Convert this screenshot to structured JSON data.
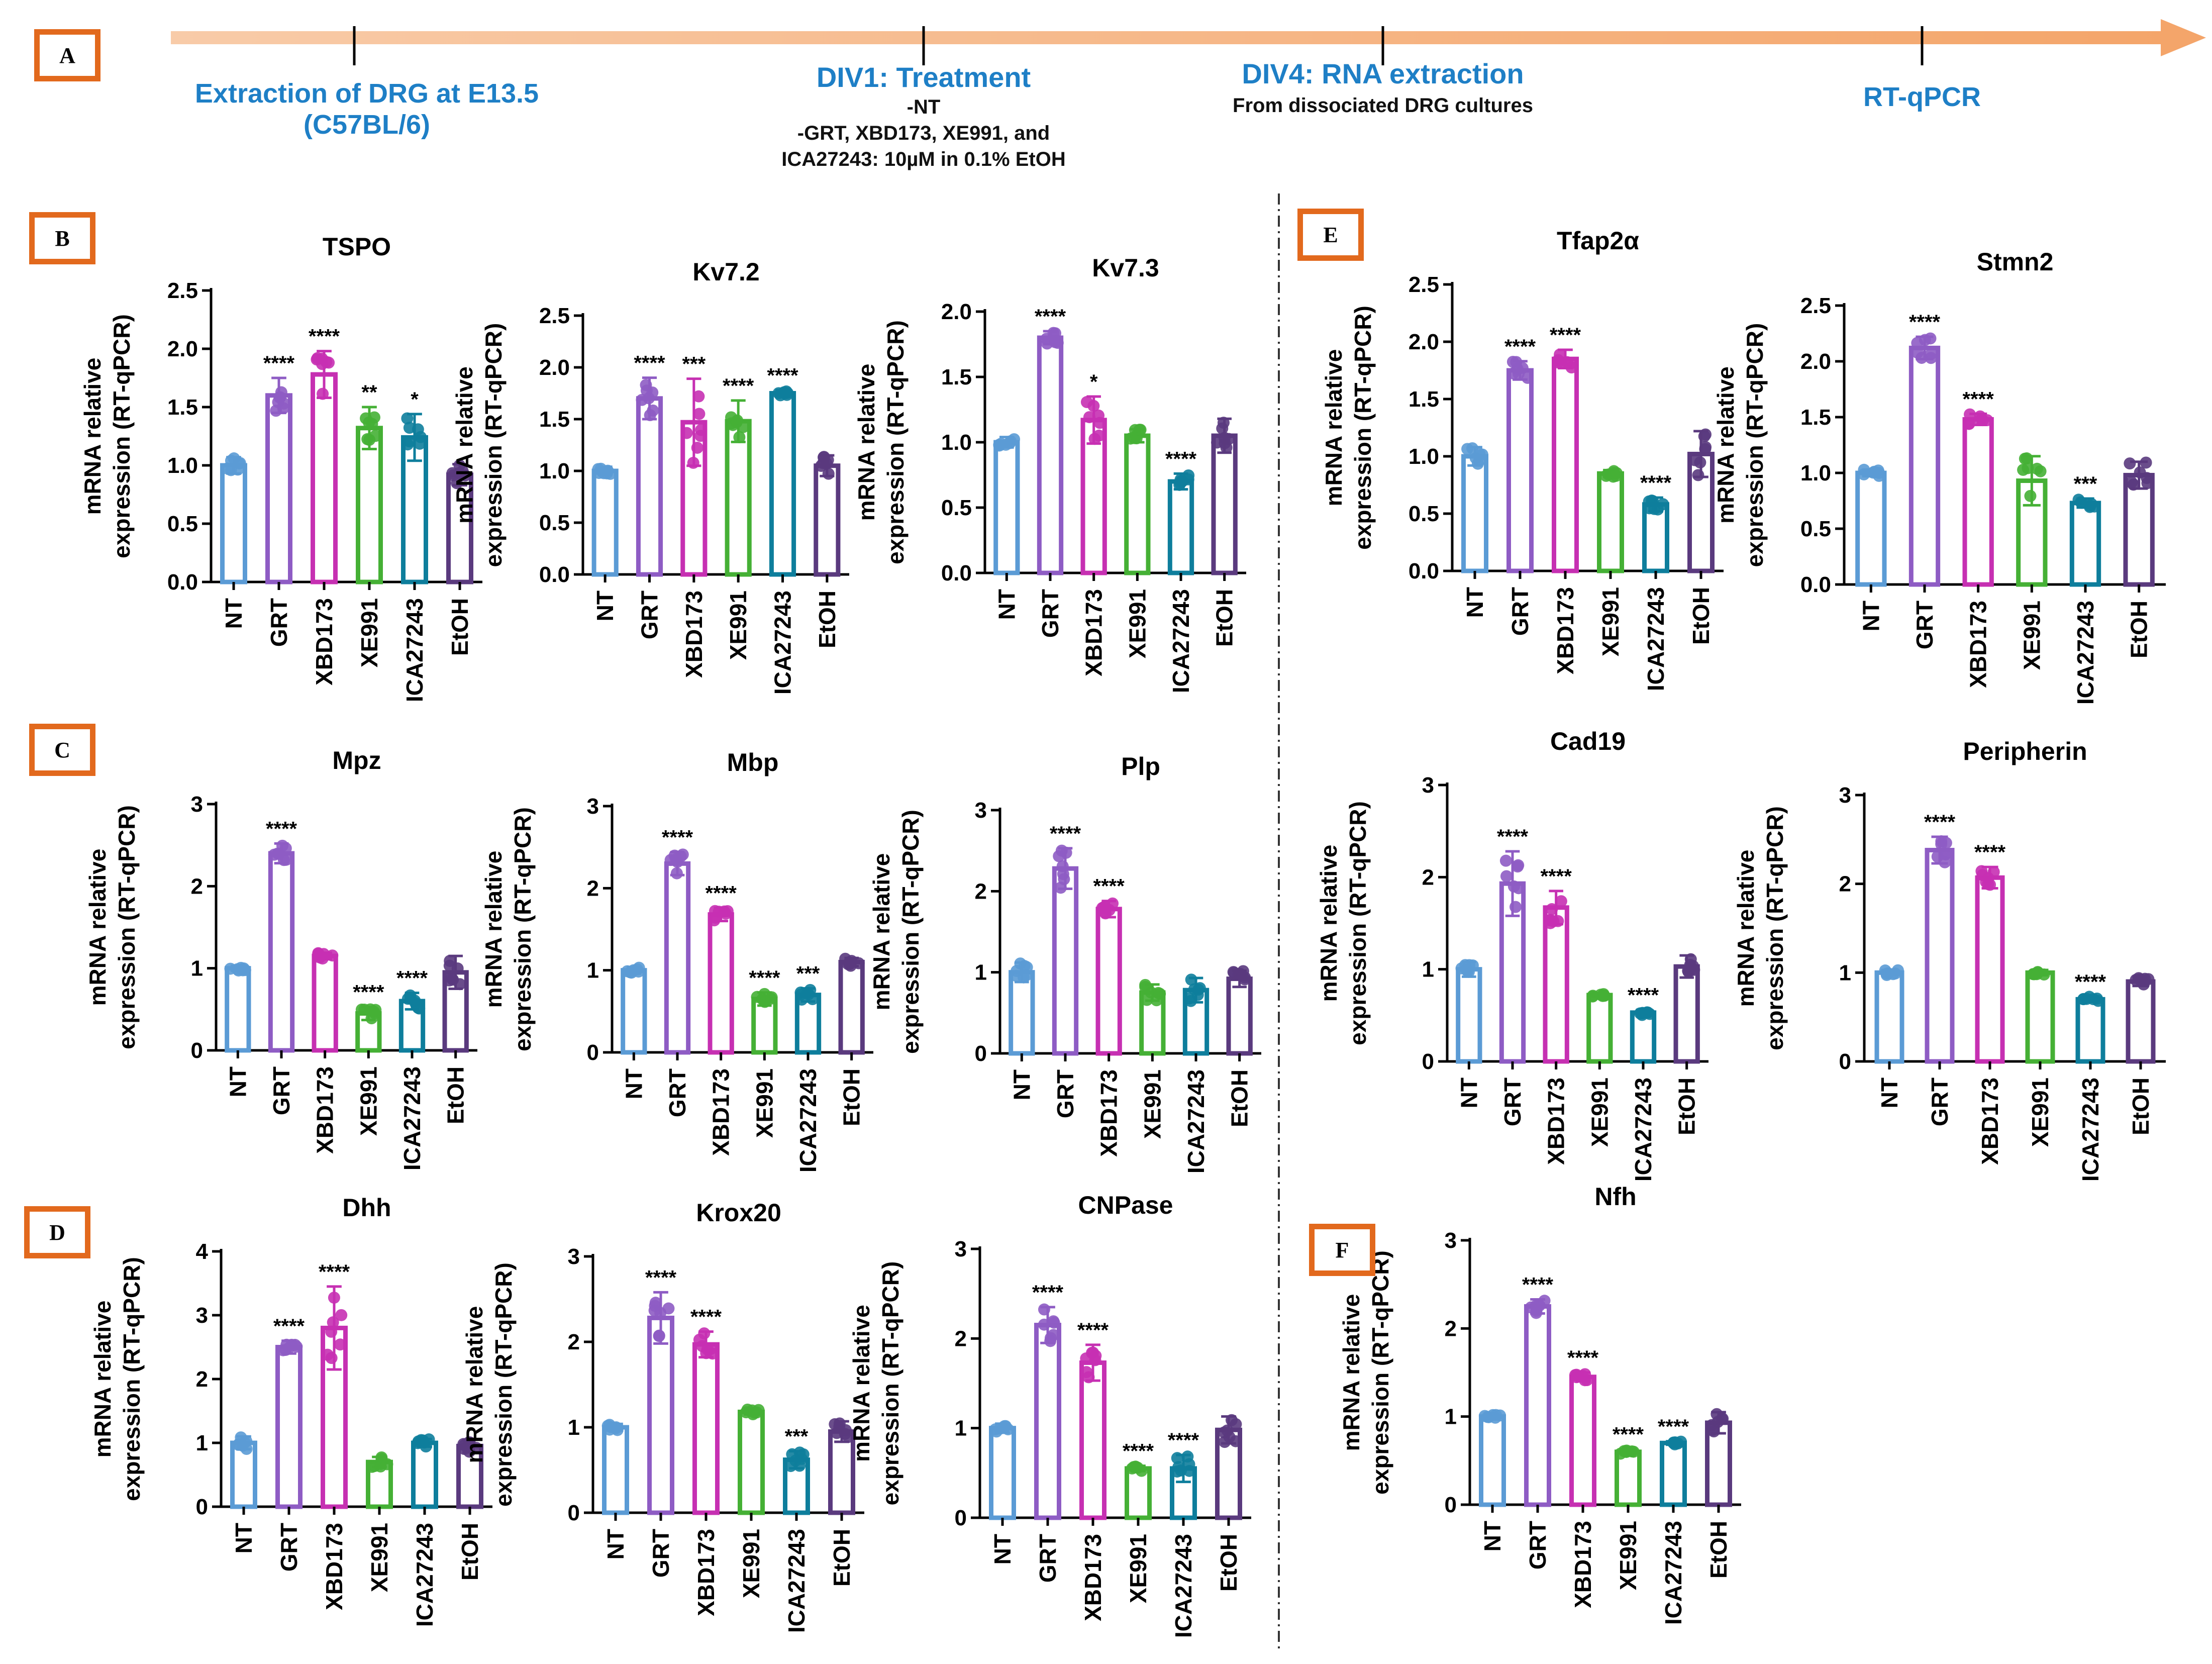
{
  "timeline": {
    "steps": [
      {
        "title": "Extraction of DRG at E13.5 (C57BL/6)",
        "details": []
      },
      {
        "title": "DIV1: Treatment",
        "details": [
          "-NT",
          "-GRT, XBD173, XE991, and",
          "ICA27243: 10µM in 0.1% EtOH"
        ]
      },
      {
        "title": "DIV4: RNA extraction",
        "details": [
          "From dissociated DRG cultures"
        ]
      },
      {
        "title": "RT-qPCR",
        "details": []
      }
    ]
  },
  "panels": {
    "A": "A",
    "B": "B",
    "C": "C",
    "D": "D",
    "E": "E",
    "F": "F"
  },
  "colors": {
    "NT": "#5b9bd5",
    "GRT": "#8e5cc4",
    "XBD173": "#c630b2",
    "XE991": "#45b035",
    "ICA27243": "#0e7e9c",
    "EtOH": "#5a3a7e",
    "arrow": "#f4b183",
    "panel_border": "#e2691d",
    "step_title": "#1e7fc6"
  },
  "y_axis_label_line1": "mRNA relative",
  "y_axis_label_line2": "expression (RT-qPCR)",
  "chart_data": [
    {
      "type": "bar",
      "title": "TSPO",
      "categories": [
        "NT",
        "GRT",
        "XBD173",
        "XE991",
        "ICA27243",
        "EtOH"
      ],
      "values": [
        1.0,
        1.6,
        1.78,
        1.32,
        1.24,
        0.92
      ],
      "errors": [
        0.07,
        0.15,
        0.2,
        0.18,
        0.2,
        0.09
      ],
      "significance": [
        "",
        "****",
        "****",
        "**",
        "*",
        ""
      ],
      "ylim": [
        0,
        2.5
      ],
      "yticks": [
        0.0,
        0.5,
        1.0,
        1.5,
        2.0,
        2.5
      ],
      "ylabel": "mRNA relative expression (RT-qPCR)"
    },
    {
      "type": "bar",
      "title": "Kv7.2",
      "categories": [
        "NT",
        "GRT",
        "XBD173",
        "XE991",
        "ICA27243",
        "EtOH"
      ],
      "values": [
        1.0,
        1.7,
        1.47,
        1.48,
        1.75,
        1.05
      ],
      "errors": [
        0.04,
        0.2,
        0.42,
        0.2,
        0.03,
        0.1
      ],
      "significance": [
        "",
        "****",
        "***",
        "****",
        "****",
        ""
      ],
      "ylim": [
        0,
        2.5
      ],
      "yticks": [
        0.0,
        0.5,
        1.0,
        1.5,
        2.0,
        2.5
      ],
      "ylabel": "mRNA relative expression (RT-qPCR)"
    },
    {
      "type": "bar",
      "title": "Kv7.3",
      "categories": [
        "NT",
        "GRT",
        "XBD173",
        "XE991",
        "ICA27243",
        "EtOH"
      ],
      "values": [
        1.0,
        1.8,
        1.17,
        1.05,
        0.7,
        1.05
      ],
      "errors": [
        0.04,
        0.05,
        0.18,
        0.05,
        0.06,
        0.13
      ],
      "significance": [
        "",
        "****",
        "*",
        "",
        "****",
        ""
      ],
      "ylim": [
        0,
        2.0
      ],
      "yticks": [
        0.0,
        0.5,
        1.0,
        1.5,
        2.0
      ],
      "ylabel": "mRNA relative expression (RT-qPCR)"
    },
    {
      "type": "bar",
      "title": "Tfap2α",
      "categories": [
        "NT",
        "GRT",
        "XBD173",
        "XE991",
        "ICA27243",
        "EtOH"
      ],
      "values": [
        1.0,
        1.75,
        1.85,
        0.85,
        0.58,
        1.02
      ],
      "errors": [
        0.08,
        0.08,
        0.08,
        0.03,
        0.06,
        0.2
      ],
      "significance": [
        "",
        "****",
        "****",
        "",
        "****",
        ""
      ],
      "ylim": [
        0,
        2.5
      ],
      "yticks": [
        0.0,
        0.5,
        1.0,
        1.5,
        2.0,
        2.5
      ],
      "ylabel": "mRNA relative expression (RT-qPCR)"
    },
    {
      "type": "bar",
      "title": "Stmn2",
      "categories": [
        "NT",
        "GRT",
        "XBD173",
        "XE991",
        "ICA27243",
        "EtOH"
      ],
      "values": [
        1.0,
        2.12,
        1.48,
        0.93,
        0.73,
        0.98
      ],
      "errors": [
        0.03,
        0.1,
        0.05,
        0.22,
        0.04,
        0.12
      ],
      "significance": [
        "",
        "****",
        "****",
        "",
        "***",
        ""
      ],
      "ylim": [
        0,
        2.5
      ],
      "yticks": [
        0.0,
        0.5,
        1.0,
        1.5,
        2.0,
        2.5
      ],
      "ylabel": "mRNA relative expression (RT-qPCR)"
    },
    {
      "type": "bar",
      "title": "Mpz",
      "categories": [
        "NT",
        "GRT",
        "XBD173",
        "XE991",
        "ICA27243",
        "EtOH"
      ],
      "values": [
        1.0,
        2.4,
        1.15,
        0.45,
        0.6,
        0.95
      ],
      "errors": [
        0.03,
        0.12,
        0.04,
        0.08,
        0.1,
        0.2
      ],
      "significance": [
        "",
        "****",
        "",
        "****",
        "****",
        ""
      ],
      "ylim": [
        0,
        3
      ],
      "yticks": [
        0,
        1,
        2,
        3
      ],
      "ylabel": "mRNA relative expression (RT-qPCR)"
    },
    {
      "type": "bar",
      "title": "Mbp",
      "categories": [
        "NT",
        "GRT",
        "XBD173",
        "XE991",
        "ICA27243",
        "EtOH"
      ],
      "values": [
        1.0,
        2.3,
        1.68,
        0.65,
        0.7,
        1.1
      ],
      "errors": [
        0.04,
        0.14,
        0.08,
        0.08,
        0.08,
        0.05
      ],
      "significance": [
        "",
        "****",
        "****",
        "****",
        "***",
        ""
      ],
      "ylim": [
        0,
        3
      ],
      "yticks": [
        0,
        1,
        2,
        3
      ],
      "ylabel": "mRNA relative expression (RT-qPCR)"
    },
    {
      "type": "bar",
      "title": "Plp",
      "categories": [
        "NT",
        "GRT",
        "XBD173",
        "XE991",
        "ICA27243",
        "EtOH"
      ],
      "values": [
        1.0,
        2.28,
        1.78,
        0.75,
        0.78,
        0.92
      ],
      "errors": [
        0.12,
        0.25,
        0.1,
        0.1,
        0.15,
        0.1
      ],
      "significance": [
        "",
        "****",
        "****",
        "",
        "",
        ""
      ],
      "ylim": [
        0,
        3
      ],
      "yticks": [
        0,
        1,
        2,
        3
      ],
      "ylabel": "mRNA relative expression (RT-qPCR)"
    },
    {
      "type": "bar",
      "title": "Cad19",
      "categories": [
        "NT",
        "GRT",
        "XBD173",
        "XE991",
        "ICA27243",
        "EtOH"
      ],
      "values": [
        1.0,
        1.93,
        1.67,
        0.72,
        0.53,
        1.03
      ],
      "errors": [
        0.08,
        0.35,
        0.18,
        0.02,
        0.03,
        0.12
      ],
      "significance": [
        "",
        "****",
        "****",
        "",
        "****",
        ""
      ],
      "ylim": [
        0,
        3
      ],
      "yticks": [
        0,
        1,
        2,
        3
      ],
      "ylabel": "mRNA relative expression (RT-qPCR)"
    },
    {
      "type": "bar",
      "title": "Peripherin",
      "categories": [
        "NT",
        "GRT",
        "XBD173",
        "XE991",
        "ICA27243",
        "EtOH"
      ],
      "values": [
        1.0,
        2.38,
        2.07,
        1.0,
        0.7,
        0.9
      ],
      "errors": [
        0.03,
        0.15,
        0.12,
        0.03,
        0.03,
        0.05
      ],
      "significance": [
        "",
        "****",
        "****",
        "",
        "****",
        ""
      ],
      "ylim": [
        0,
        3
      ],
      "yticks": [
        0,
        1,
        2,
        3
      ],
      "ylabel": "mRNA relative expression (RT-qPCR)"
    },
    {
      "type": "bar",
      "title": "Dhh",
      "categories": [
        "NT",
        "GRT",
        "XBD173",
        "XE991",
        "ICA27243",
        "EtOH"
      ],
      "values": [
        1.0,
        2.5,
        2.8,
        0.7,
        1.0,
        0.95
      ],
      "errors": [
        0.1,
        0.1,
        0.65,
        0.08,
        0.06,
        0.1
      ],
      "significance": [
        "",
        "****",
        "****",
        "",
        "",
        ""
      ],
      "ylim": [
        0,
        4
      ],
      "yticks": [
        0,
        1,
        2,
        3,
        4
      ],
      "ylabel": "mRNA relative expression (RT-qPCR)"
    },
    {
      "type": "bar",
      "title": "Krox20",
      "categories": [
        "NT",
        "GRT",
        "XBD173",
        "XE991",
        "ICA27243",
        "EtOH"
      ],
      "values": [
        1.0,
        2.28,
        1.97,
        1.18,
        0.62,
        0.95
      ],
      "errors": [
        0.04,
        0.3,
        0.15,
        0.03,
        0.1,
        0.12
      ],
      "significance": [
        "",
        "****",
        "****",
        "",
        "***",
        ""
      ],
      "ylim": [
        0,
        3
      ],
      "yticks": [
        0,
        1,
        2,
        3
      ],
      "ylabel": "mRNA relative expression (RT-qPCR)"
    },
    {
      "type": "bar",
      "title": "CNPase",
      "categories": [
        "NT",
        "GRT",
        "XBD173",
        "XE991",
        "ICA27243",
        "EtOH"
      ],
      "values": [
        1.0,
        2.15,
        1.73,
        0.55,
        0.55,
        0.98
      ],
      "errors": [
        0.05,
        0.2,
        0.2,
        0.03,
        0.15,
        0.15
      ],
      "significance": [
        "",
        "****",
        "****",
        "****",
        "****",
        ""
      ],
      "ylim": [
        0,
        3
      ],
      "yticks": [
        0,
        1,
        2,
        3
      ],
      "ylabel": "mRNA relative expression (RT-qPCR)"
    },
    {
      "type": "bar",
      "title": "Nfh",
      "categories": [
        "NT",
        "GRT",
        "XBD173",
        "XE991",
        "ICA27243",
        "EtOH"
      ],
      "values": [
        1.0,
        2.25,
        1.45,
        0.6,
        0.7,
        0.93
      ],
      "errors": [
        0.02,
        0.08,
        0.05,
        0.03,
        0.02,
        0.12
      ],
      "significance": [
        "",
        "****",
        "****",
        "****",
        "****",
        ""
      ],
      "ylim": [
        0,
        3
      ],
      "yticks": [
        0,
        1,
        2,
        3
      ],
      "ylabel": "mRNA relative expression (RT-qPCR)"
    }
  ]
}
